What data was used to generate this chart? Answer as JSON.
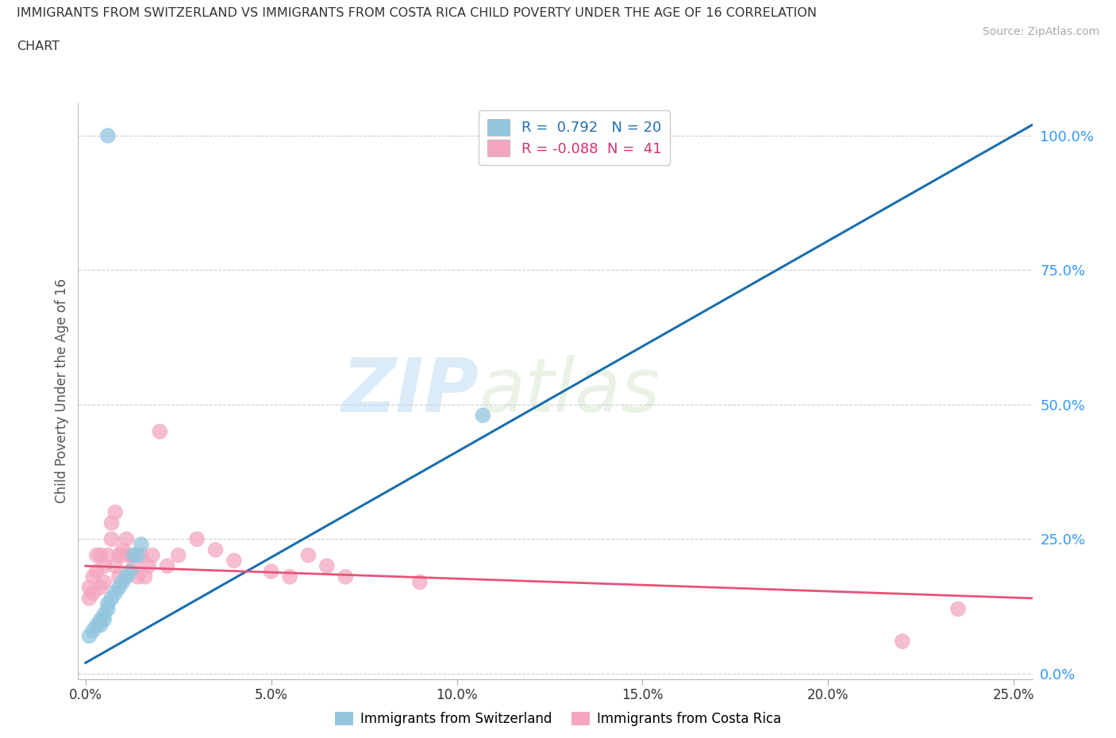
{
  "title": "IMMIGRANTS FROM SWITZERLAND VS IMMIGRANTS FROM COSTA RICA CHILD POVERTY UNDER THE AGE OF 16 CORRELATION\nCHART",
  "source": "Source: ZipAtlas.com",
  "ylabel": "Child Poverty Under the Age of 16",
  "xlabel_switzerland": "Immigrants from Switzerland",
  "xlabel_costarica": "Immigrants from Costa Rica",
  "xlim": [
    -0.002,
    0.255
  ],
  "ylim": [
    -0.01,
    1.06
  ],
  "yticks": [
    0.0,
    0.25,
    0.5,
    0.75,
    1.0
  ],
  "ytick_labels": [
    "0.0%",
    "25.0%",
    "50.0%",
    "75.0%",
    "100.0%"
  ],
  "xticks": [
    0.0,
    0.05,
    0.1,
    0.15,
    0.2,
    0.25
  ],
  "xtick_labels": [
    "0.0%",
    "5.0%",
    "10.0%",
    "15.0%",
    "20.0%",
    "25.0%"
  ],
  "switzerland_color": "#92c5de",
  "costarica_color": "#f4a6c0",
  "trend_switzerland_color": "#1a6faf",
  "trend_costarica_color": "#e8527a",
  "R_switzerland": 0.792,
  "N_switzerland": 20,
  "R_costarica": -0.088,
  "N_costarica": 41,
  "watermark_zip": "ZIP",
  "watermark_atlas": "atlas",
  "switzerland_x": [
    0.001,
    0.002,
    0.003,
    0.004,
    0.004,
    0.005,
    0.005,
    0.006,
    0.006,
    0.007,
    0.008,
    0.009,
    0.01,
    0.011,
    0.012,
    0.013,
    0.014,
    0.015,
    0.107,
    0.006
  ],
  "switzerland_y": [
    0.07,
    0.08,
    0.09,
    0.09,
    0.1,
    0.1,
    0.11,
    0.12,
    0.13,
    0.14,
    0.15,
    0.16,
    0.17,
    0.18,
    0.19,
    0.22,
    0.22,
    0.24,
    0.48,
    1.0
  ],
  "costarica_x": [
    0.001,
    0.001,
    0.002,
    0.002,
    0.003,
    0.003,
    0.004,
    0.004,
    0.005,
    0.005,
    0.006,
    0.007,
    0.007,
    0.008,
    0.008,
    0.009,
    0.009,
    0.01,
    0.01,
    0.011,
    0.012,
    0.013,
    0.014,
    0.015,
    0.016,
    0.017,
    0.018,
    0.02,
    0.022,
    0.025,
    0.03,
    0.035,
    0.04,
    0.05,
    0.055,
    0.06,
    0.065,
    0.07,
    0.09,
    0.22,
    0.235
  ],
  "costarica_y": [
    0.14,
    0.16,
    0.15,
    0.18,
    0.19,
    0.22,
    0.16,
    0.22,
    0.17,
    0.2,
    0.22,
    0.25,
    0.28,
    0.3,
    0.2,
    0.22,
    0.18,
    0.22,
    0.23,
    0.25,
    0.22,
    0.2,
    0.18,
    0.22,
    0.18,
    0.2,
    0.22,
    0.45,
    0.2,
    0.22,
    0.25,
    0.23,
    0.21,
    0.19,
    0.18,
    0.22,
    0.2,
    0.18,
    0.17,
    0.06,
    0.12
  ],
  "trend_swiss_x0": 0.0,
  "trend_swiss_x1": 0.255,
  "trend_swiss_y0": 0.02,
  "trend_swiss_y1": 1.02,
  "trend_cr_x0": 0.0,
  "trend_cr_x1": 0.255,
  "trend_cr_y0": 0.2,
  "trend_cr_y1": 0.14
}
